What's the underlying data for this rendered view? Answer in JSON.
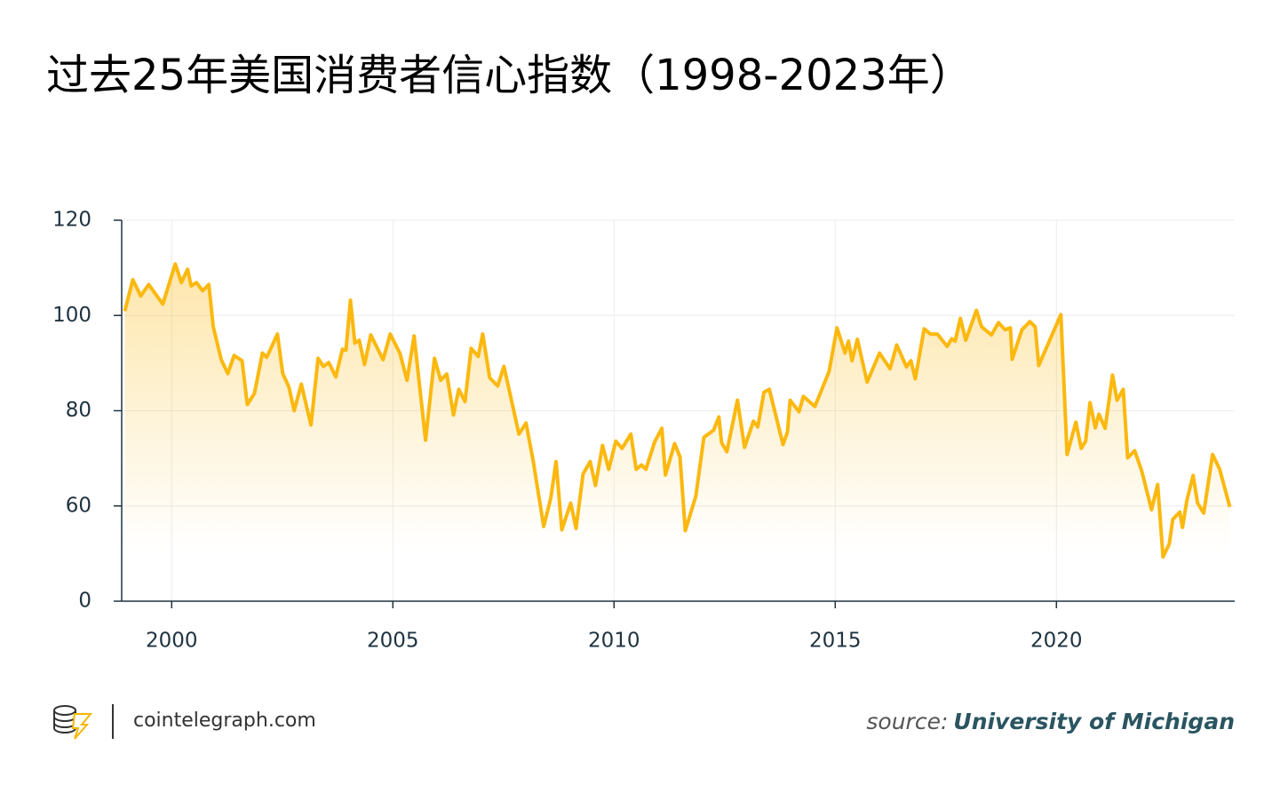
{
  "chart_data": {
    "type": "line",
    "title": "过去25年美国消费者信心指数（1998-2023年）",
    "x": [
      1998.94,
      1999.12,
      1999.3,
      1999.48,
      1999.8,
      2000.08,
      2000.22,
      2000.36,
      2000.44,
      2000.56,
      2000.7,
      2000.84,
      2000.94,
      2001.12,
      2001.27,
      2001.41,
      2001.59,
      2001.71,
      2001.87,
      2002.05,
      2002.15,
      2002.39,
      2002.51,
      2002.65,
      2002.77,
      2002.93,
      2003.15,
      2003.31,
      2003.43,
      2003.55,
      2003.71,
      2003.86,
      2003.94,
      2004.04,
      2004.14,
      2004.24,
      2004.36,
      2004.5,
      2004.78,
      2004.94,
      2005.16,
      2005.32,
      2005.48,
      2005.74,
      2005.94,
      2006.08,
      2006.22,
      2006.37,
      2006.49,
      2006.63,
      2006.77,
      2006.93,
      2007.03,
      2007.19,
      2007.37,
      2007.51,
      2007.67,
      2007.85,
      2008.01,
      2008.17,
      2008.41,
      2008.57,
      2008.69,
      2008.82,
      2009.02,
      2009.14,
      2009.3,
      2009.46,
      2009.58,
      2009.74,
      2009.88,
      2010.04,
      2010.18,
      2010.38,
      2010.5,
      2010.62,
      2010.72,
      2010.92,
      2011.08,
      2011.16,
      2011.37,
      2011.49,
      2011.61,
      2011.85,
      2012.03,
      2012.25,
      2012.37,
      2012.43,
      2012.55,
      2012.79,
      2012.95,
      2013.15,
      2013.25,
      2013.39,
      2013.51,
      2013.82,
      2013.92,
      2013.98,
      2014.18,
      2014.28,
      2014.54,
      2014.86,
      2015.04,
      2015.22,
      2015.3,
      2015.38,
      2015.5,
      2015.72,
      2016.0,
      2016.24,
      2016.39,
      2016.61,
      2016.71,
      2016.81,
      2017.01,
      2017.15,
      2017.31,
      2017.53,
      2017.63,
      2017.71,
      2017.83,
      2017.95,
      2018.19,
      2018.31,
      2018.53,
      2018.69,
      2018.84,
      2018.96,
      2019.0,
      2019.22,
      2019.4,
      2019.52,
      2019.6,
      2020.1,
      2020.24,
      2020.44,
      2020.56,
      2020.66,
      2020.76,
      2020.88,
      2020.96,
      2021.1,
      2021.27,
      2021.37,
      2021.51,
      2021.61,
      2021.77,
      2021.93,
      2022.15,
      2022.29,
      2022.41,
      2022.55,
      2022.63,
      2022.79,
      2022.85,
      2022.95,
      2023.09,
      2023.19,
      2023.33,
      2023.53,
      2023.69,
      2023.92
    ],
    "values": [
      100.9,
      107.5,
      104.1,
      106.5,
      102.4,
      110.8,
      106.9,
      109.7,
      106.2,
      106.9,
      105.2,
      106.5,
      97.6,
      90.7,
      87.8,
      91.6,
      90.5,
      81.3,
      83.6,
      92.1,
      91.2,
      96.1,
      87.8,
      85.0,
      80.0,
      85.6,
      77.0,
      91.0,
      89.3,
      90.1,
      87.1,
      92.9,
      92.7,
      103.2,
      94.2,
      94.8,
      89.7,
      95.9,
      90.7,
      96.1,
      92.0,
      86.4,
      95.7,
      73.8,
      91.0,
      86.4,
      87.7,
      79.1,
      84.5,
      81.9,
      93.1,
      91.4,
      96.1,
      86.9,
      85.2,
      89.3,
      82.6,
      75.1,
      77.4,
      69.5,
      55.7,
      61.7,
      69.3,
      55.0,
      60.6,
      55.3,
      66.7,
      69.3,
      64.3,
      72.7,
      67.7,
      73.6,
      72.1,
      75.1,
      67.7,
      68.6,
      67.7,
      73.5,
      76.3,
      66.5,
      73.1,
      70.3,
      54.8,
      62.1,
      74.4,
      75.9,
      78.7,
      73.3,
      71.4,
      82.2,
      72.3,
      77.8,
      76.6,
      83.9,
      84.5,
      72.9,
      75.5,
      82.2,
      79.8,
      83.0,
      80.9,
      88.2,
      97.4,
      92.1,
      94.6,
      90.5,
      95.0,
      86.0,
      92.1,
      88.8,
      93.8,
      89.2,
      90.5,
      86.7,
      97.2,
      96.1,
      96.1,
      93.5,
      95.1,
      94.6,
      99.4,
      94.8,
      101.1,
      97.6,
      95.9,
      98.5,
      97.0,
      97.4,
      90.8,
      97.0,
      98.7,
      97.6,
      89.5,
      100.2,
      70.8,
      77.6,
      72.1,
      73.6,
      81.7,
      76.4,
      79.3,
      76.3,
      87.5,
      82.2,
      84.5,
      70.1,
      71.6,
      67.3,
      59.2,
      64.5,
      49.3,
      52.0,
      57.2,
      58.7,
      55.5,
      61.2,
      66.4,
      60.6,
      58.5,
      70.8,
      67.7,
      59.8
    ],
    "color": "#fbb80f",
    "xlim": [
      1998.87,
      2024.03
    ],
    "xticks": [
      2000,
      2005,
      2010,
      2015,
      2020
    ],
    "ylim": [
      40,
      120
    ],
    "yticks": [
      {
        "value": 40,
        "label": "0"
      },
      60,
      80,
      100,
      120
    ],
    "grid": true,
    "brand": "cointelegraph.com",
    "source_label": "source:",
    "source": "University of Michigan"
  }
}
